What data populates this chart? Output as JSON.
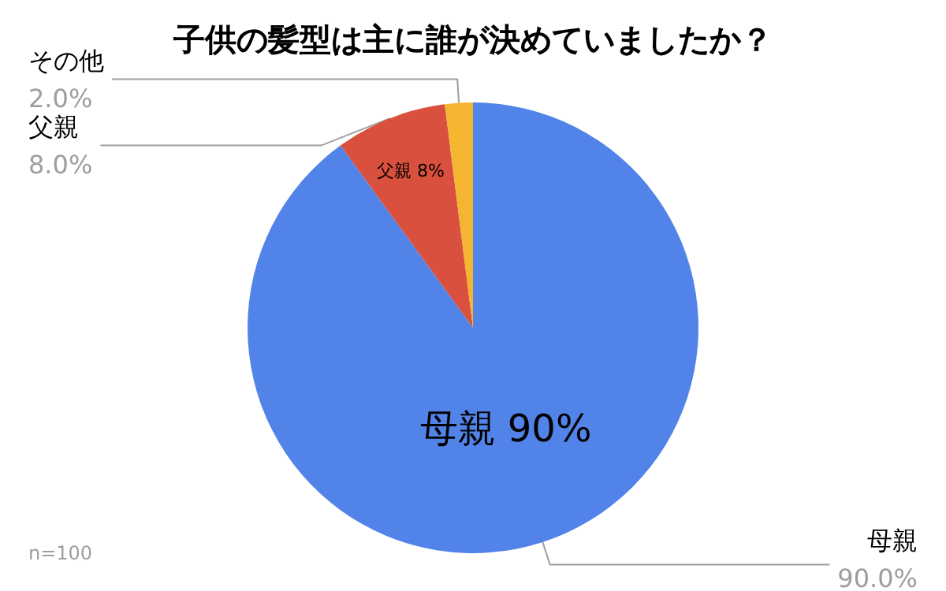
{
  "chart_data": {
    "type": "pie",
    "title": "子供の髪型は主に誰が決めていましたか？",
    "categories": [
      "母親",
      "父親",
      "その他"
    ],
    "values": [
      90,
      8,
      2
    ],
    "colors": [
      "#5283e9",
      "#d9503e",
      "#f4b630"
    ],
    "value_labels": [
      "90.0%",
      "8.0%",
      "2.0%"
    ],
    "annotations": [
      {
        "text": "母親 90%",
        "x": "母親"
      },
      {
        "text": "父親 8%",
        "x": "父親"
      },
      "n=100"
    ],
    "legend": false
  }
}
